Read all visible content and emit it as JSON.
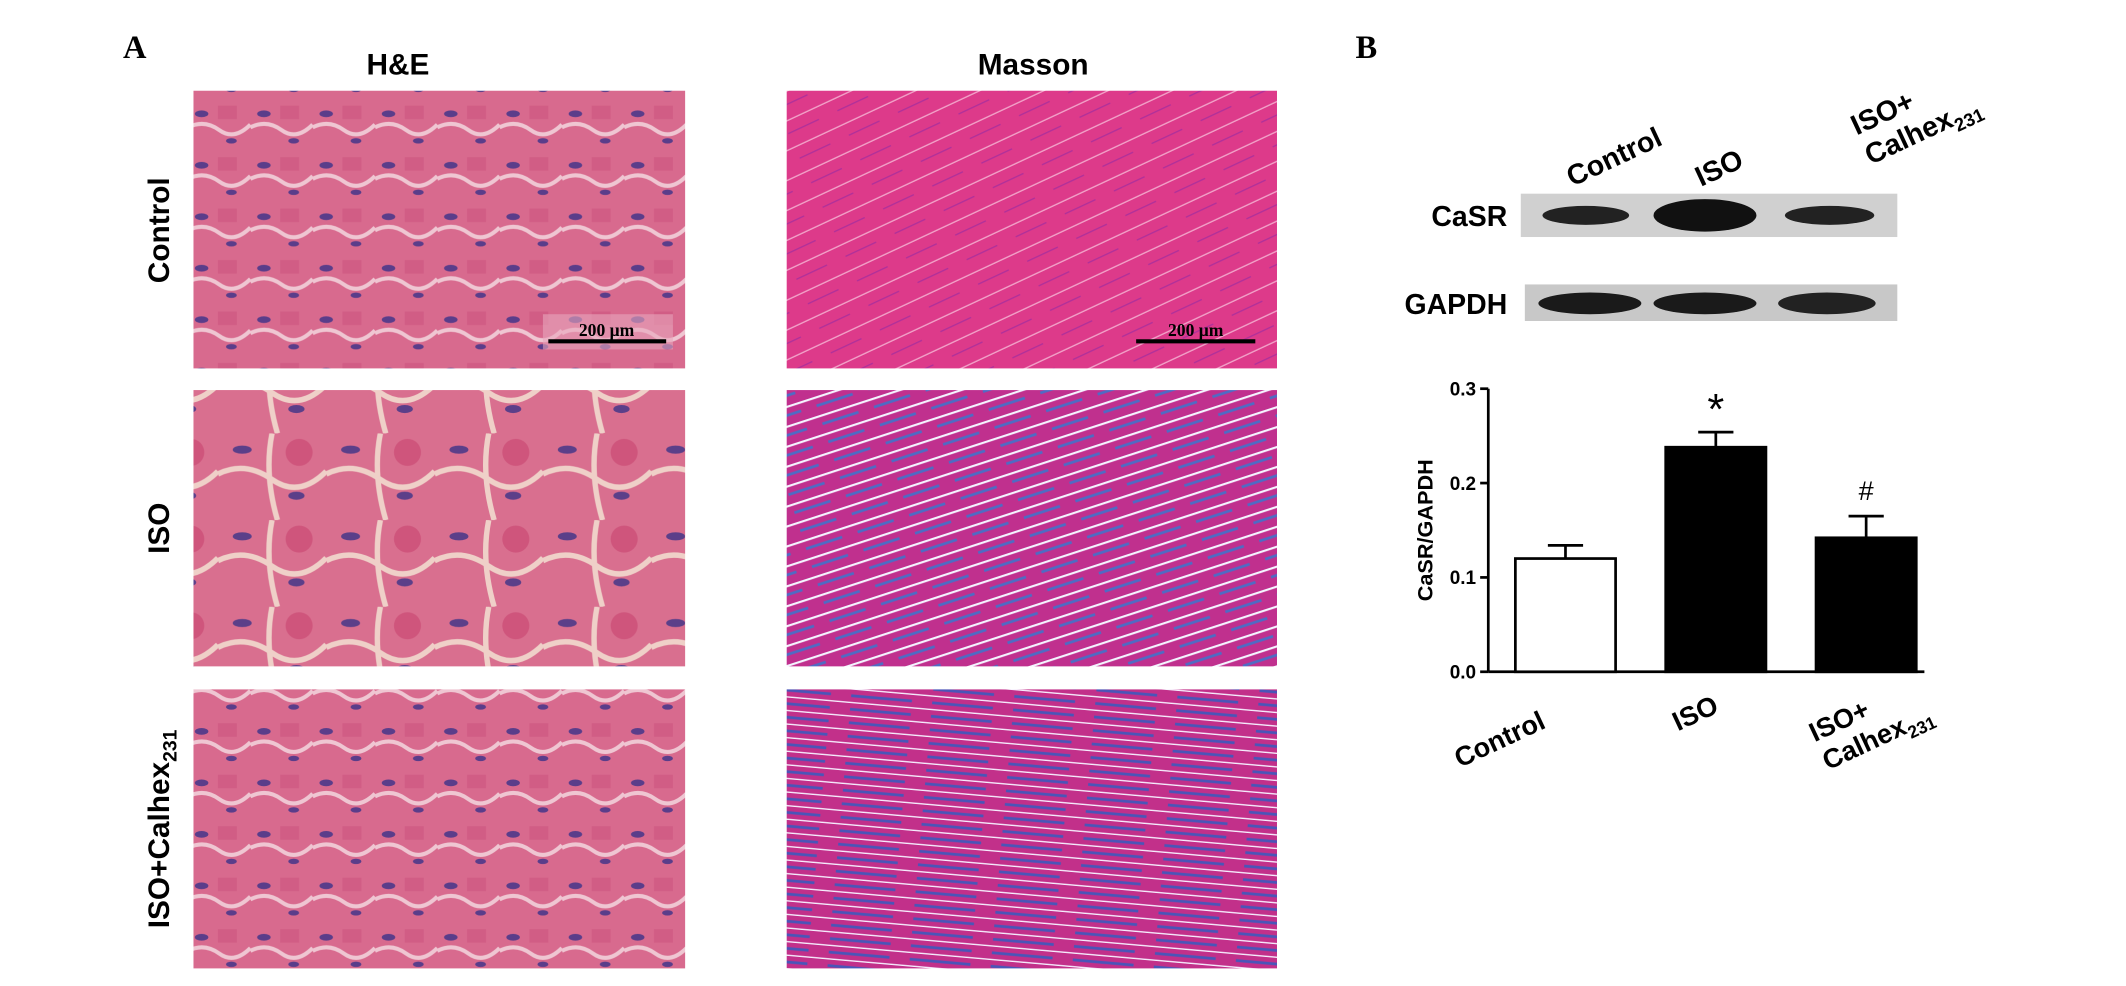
{
  "panel_a": {
    "label": "A",
    "columns": [
      "H&E",
      "Masson"
    ],
    "rows": [
      [
        "Control"
      ],
      [
        "ISO"
      ],
      [
        "ISO+Calhex",
        "231"
      ]
    ],
    "scale_bars": [
      "200 μm",
      "200 μm"
    ]
  },
  "panel_b": {
    "label": "B",
    "lanes": [
      [
        "Control"
      ],
      [
        "ISO"
      ],
      [
        "ISO+",
        "Calhex",
        "231"
      ]
    ],
    "blots": [
      "CaSR",
      "GAPDH"
    ]
  },
  "chart_data": {
    "type": "bar",
    "ylabel": "CaSR/GAPDH",
    "categories": [
      [
        "Control"
      ],
      [
        "ISO"
      ],
      [
        "ISO+",
        "Calhex",
        "231"
      ]
    ],
    "values": [
      0.12,
      0.238,
      0.142
    ],
    "errors": [
      0.014,
      0.016,
      0.023
    ],
    "colors": [
      "#ffffff",
      "#000000",
      "#000000"
    ],
    "edgecolor": "#000000",
    "annotations": [
      null,
      "*",
      "#"
    ],
    "ylim": [
      0,
      0.3
    ],
    "yticks": [
      {
        "value": 0,
        "label": "0.0"
      },
      0.1,
      0.2,
      0.3
    ]
  }
}
